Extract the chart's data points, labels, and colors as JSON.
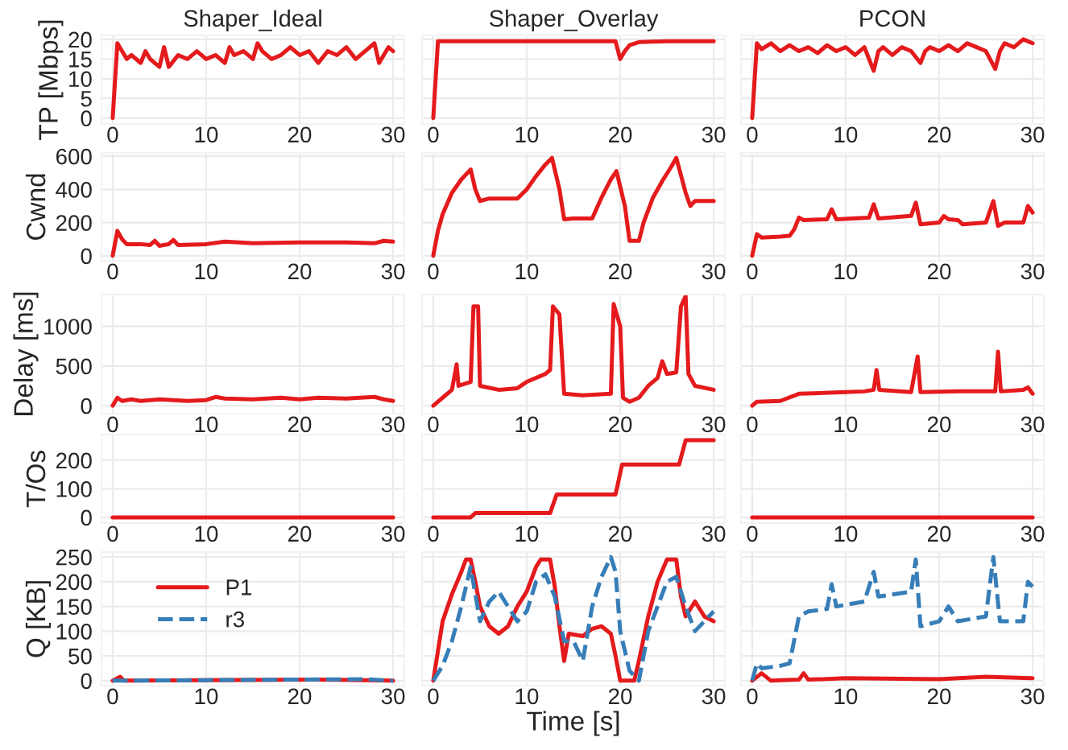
{
  "chart_data": [
    {
      "type": "line",
      "title": "Shaper_Ideal",
      "ylabel": "TP [Mbps]",
      "xlim": [
        -1.2,
        31.2
      ],
      "xticks": [
        0,
        10,
        20,
        30
      ],
      "ylim": [
        -1.5,
        21
      ],
      "yticks": [
        0,
        5,
        10,
        15,
        20
      ],
      "grid": true,
      "series": [
        {
          "color": "#e41a1c",
          "x": [
            0,
            0.5,
            1,
            1.5,
            2,
            3,
            3.5,
            4,
            5,
            5.5,
            6,
            7,
            8,
            9,
            10,
            11,
            12,
            12.5,
            13,
            14,
            15,
            15.5,
            16,
            17,
            18,
            19,
            20,
            21,
            22,
            23,
            24,
            25,
            26,
            27,
            28,
            28.5,
            29,
            29.5,
            30
          ],
          "values": [
            0,
            19,
            17,
            15,
            16,
            14,
            17,
            15,
            13,
            18,
            13,
            16,
            15,
            17,
            15,
            16,
            14,
            18,
            16,
            17,
            15,
            19,
            17,
            15,
            16,
            18,
            16,
            17,
            14,
            17,
            16,
            18,
            15,
            17,
            19,
            14,
            16,
            18,
            17
          ]
        }
      ]
    },
    {
      "type": "line",
      "title": "Shaper_Overlay",
      "xlim": [
        -1.2,
        31.2
      ],
      "xticks": [
        0,
        10,
        20,
        30
      ],
      "ylim": [
        -1.5,
        21
      ],
      "yticks": [
        0,
        5,
        10,
        15,
        20
      ],
      "grid": true,
      "tick_labels": "x",
      "series": [
        {
          "color": "#e41a1c",
          "x": [
            0,
            0.5,
            5,
            10,
            15,
            19.5,
            20,
            20.5,
            21,
            22,
            25,
            30
          ],
          "values": [
            0,
            19.5,
            19.5,
            19.5,
            19.5,
            19.5,
            15,
            17,
            18.5,
            19.3,
            19.5,
            19.5
          ]
        }
      ]
    },
    {
      "type": "line",
      "title": "PCON",
      "xlim": [
        -1.2,
        31.2
      ],
      "xticks": [
        0,
        10,
        20,
        30
      ],
      "ylim": [
        -1.5,
        21
      ],
      "yticks": [
        0,
        5,
        10,
        15,
        20
      ],
      "grid": true,
      "tick_labels": "x",
      "series": [
        {
          "color": "#e41a1c",
          "x": [
            0,
            0.5,
            1,
            2,
            3,
            4,
            5,
            6,
            7,
            8,
            9,
            10,
            11,
            12,
            13,
            13.5,
            14,
            15,
            16,
            17,
            18,
            18.5,
            19,
            20,
            21,
            22,
            23,
            24,
            25,
            26,
            26.5,
            27,
            28,
            29,
            30
          ],
          "values": [
            0,
            19,
            17.5,
            19,
            17,
            18.5,
            17,
            18,
            16.5,
            18.5,
            17,
            18,
            16,
            18,
            12,
            17,
            18,
            16,
            18,
            17,
            14,
            17,
            18,
            17,
            18.5,
            17,
            19,
            18,
            17,
            12.5,
            17,
            19,
            18,
            20,
            19
          ]
        }
      ]
    },
    {
      "type": "line",
      "ylabel": "Cwnd",
      "xlim": [
        -1.2,
        31.2
      ],
      "xticks": [
        0,
        10,
        20,
        30
      ],
      "ylim": [
        -30,
        620
      ],
      "yticks": [
        0,
        200,
        400,
        600
      ],
      "grid": true,
      "series": [
        {
          "color": "#e41a1c",
          "x": [
            0,
            0.5,
            1,
            1.5,
            3,
            4,
            4.5,
            5,
            6,
            6.5,
            7,
            10,
            12,
            15,
            20,
            25,
            28,
            29,
            30
          ],
          "values": [
            0,
            150,
            100,
            70,
            70,
            65,
            90,
            60,
            70,
            95,
            65,
            70,
            85,
            75,
            80,
            80,
            75,
            90,
            85
          ]
        }
      ]
    },
    {
      "type": "line",
      "xlim": [
        -1.2,
        31.2
      ],
      "xticks": [
        0,
        10,
        20,
        30
      ],
      "ylim": [
        -30,
        620
      ],
      "yticks": [
        0,
        200,
        400,
        600
      ],
      "grid": true,
      "tick_labels": "x",
      "series": [
        {
          "color": "#e41a1c",
          "x": [
            0,
            0.5,
            1,
            2,
            3,
            4,
            4.5,
            5,
            6,
            9,
            10,
            11,
            12,
            12.7,
            13.5,
            14,
            15,
            17,
            18,
            19,
            19.6,
            20.5,
            21,
            22,
            22.5,
            23.5,
            24.5,
            25.5,
            26,
            27,
            27.5,
            28,
            30
          ],
          "values": [
            0,
            150,
            250,
            380,
            460,
            520,
            400,
            330,
            345,
            345,
            400,
            480,
            550,
            590,
            400,
            220,
            225,
            225,
            350,
            460,
            510,
            300,
            90,
            90,
            200,
            350,
            450,
            540,
            590,
            380,
            300,
            330,
            330
          ]
        }
      ]
    },
    {
      "type": "line",
      "xlim": [
        -1.2,
        31.2
      ],
      "xticks": [
        0,
        10,
        20,
        30
      ],
      "ylim": [
        -30,
        620
      ],
      "yticks": [
        0,
        200,
        400,
        600
      ],
      "grid": true,
      "tick_labels": "x",
      "series": [
        {
          "color": "#e41a1c",
          "x": [
            0,
            0.5,
            1,
            3,
            4,
            4.5,
            5,
            5.5,
            8,
            8.5,
            9,
            12.5,
            13,
            13.5,
            17,
            17.5,
            18,
            20,
            20.5,
            21,
            22,
            22.5,
            25,
            25.8,
            26.3,
            27,
            29,
            29.5,
            30
          ],
          "values": [
            0,
            130,
            110,
            115,
            120,
            160,
            230,
            215,
            220,
            280,
            220,
            230,
            310,
            225,
            240,
            320,
            190,
            200,
            240,
            220,
            215,
            190,
            200,
            330,
            180,
            200,
            200,
            300,
            260
          ]
        }
      ]
    },
    {
      "type": "line",
      "ylabel": "Delay [ms]",
      "xlim": [
        -1.2,
        31.2
      ],
      "xticks": [
        0,
        10,
        20,
        30
      ],
      "ylim": [
        -100,
        1400
      ],
      "yticks": [
        0,
        500,
        1000
      ],
      "grid": true,
      "series": [
        {
          "color": "#e41a1c",
          "x": [
            0,
            0.5,
            1,
            2,
            3,
            5,
            8,
            10,
            11,
            12,
            15,
            18,
            20,
            22,
            25,
            28,
            29,
            30
          ],
          "values": [
            0,
            100,
            60,
            80,
            60,
            80,
            60,
            70,
            110,
            90,
            80,
            100,
            80,
            100,
            90,
            110,
            80,
            60
          ]
        }
      ]
    },
    {
      "type": "line",
      "xlim": [
        -1.2,
        31.2
      ],
      "xticks": [
        0,
        10,
        20,
        30
      ],
      "ylim": [
        -100,
        1400
      ],
      "yticks": [
        0,
        500,
        1000
      ],
      "grid": true,
      "tick_labels": "x",
      "series": [
        {
          "color": "#e41a1c",
          "x": [
            0,
            1,
            2,
            2.5,
            2.7,
            4,
            4.3,
            4.8,
            5,
            7,
            9,
            10,
            12,
            12.5,
            12.8,
            13.5,
            14,
            16,
            19,
            19.3,
            20,
            20.3,
            21,
            22,
            23,
            24,
            24.5,
            25,
            26,
            26.5,
            27,
            27.3,
            28,
            30
          ],
          "values": [
            0,
            100,
            200,
            520,
            250,
            300,
            1250,
            1250,
            250,
            200,
            220,
            300,
            400,
            450,
            1250,
            1150,
            150,
            130,
            150,
            1280,
            1000,
            100,
            50,
            100,
            250,
            350,
            560,
            400,
            420,
            1250,
            1380,
            400,
            250,
            200
          ]
        }
      ]
    },
    {
      "type": "line",
      "xlim": [
        -1.2,
        31.2
      ],
      "xticks": [
        0,
        10,
        20,
        30
      ],
      "ylim": [
        -100,
        1400
      ],
      "yticks": [
        0,
        500,
        1000
      ],
      "grid": true,
      "tick_labels": "x",
      "series": [
        {
          "color": "#e41a1c",
          "x": [
            0,
            0.5,
            3,
            5,
            10,
            12,
            13,
            13.3,
            13.6,
            17,
            17.7,
            18,
            22,
            26,
            26.3,
            26.6,
            29,
            29.5,
            30
          ],
          "values": [
            0,
            50,
            60,
            150,
            170,
            180,
            200,
            450,
            200,
            170,
            620,
            170,
            180,
            180,
            680,
            180,
            200,
            230,
            150
          ]
        }
      ]
    },
    {
      "type": "line",
      "ylabel": "T/Os",
      "xlim": [
        -1.2,
        31.2
      ],
      "xticks": [
        0,
        10,
        20,
        30
      ],
      "ylim": [
        -20,
        290
      ],
      "yticks": [
        0,
        100,
        200
      ],
      "grid": true,
      "series": [
        {
          "color": "#e41a1c",
          "x": [
            0,
            30
          ],
          "values": [
            0,
            0
          ]
        }
      ]
    },
    {
      "type": "line",
      "xlim": [
        -1.2,
        31.2
      ],
      "xticks": [
        0,
        10,
        20,
        30
      ],
      "ylim": [
        -20,
        290
      ],
      "yticks": [
        0,
        100,
        200
      ],
      "grid": true,
      "tick_labels": "x",
      "series": [
        {
          "color": "#e41a1c",
          "x": [
            0,
            4,
            4.5,
            12.5,
            13.2,
            19.5,
            20.2,
            26.3,
            27,
            30
          ],
          "values": [
            0,
            0,
            15,
            15,
            80,
            80,
            185,
            185,
            270,
            270
          ]
        }
      ]
    },
    {
      "type": "line",
      "xlim": [
        -1.2,
        31.2
      ],
      "xticks": [
        0,
        10,
        20,
        30
      ],
      "ylim": [
        -20,
        290
      ],
      "yticks": [
        0,
        100,
        200
      ],
      "grid": true,
      "tick_labels": "x",
      "series": [
        {
          "color": "#e41a1c",
          "x": [
            0,
            30
          ],
          "values": [
            0,
            0
          ]
        }
      ]
    },
    {
      "type": "line",
      "ylabel": "Q [KB]",
      "xlim": [
        -1.2,
        31.2
      ],
      "xticks": [
        0,
        10,
        20,
        30
      ],
      "ylim": [
        -10,
        260
      ],
      "yticks": [
        0,
        50,
        100,
        150,
        200,
        250
      ],
      "grid": true,
      "legend": "top left",
      "series": [
        {
          "name": "P1",
          "color": "#e41a1c",
          "line_style": "solid",
          "x": [
            0,
            0.8,
            1.2,
            22,
            30
          ],
          "values": [
            0,
            8,
            0,
            2,
            0
          ]
        },
        {
          "name": "r3",
          "color": "#377eb8",
          "line_style": "dashed",
          "x": [
            0,
            27,
            30
          ],
          "values": [
            0,
            3,
            0
          ]
        }
      ]
    },
    {
      "type": "line",
      "xlabel": "Time [s]",
      "xlim": [
        -1.2,
        31.2
      ],
      "xticks": [
        0,
        10,
        20,
        30
      ],
      "ylim": [
        -10,
        260
      ],
      "yticks": [
        0,
        50,
        100,
        150,
        200,
        250
      ],
      "grid": true,
      "tick_labels": "x",
      "series": [
        {
          "color": "#e41a1c",
          "line_style": "solid",
          "x": [
            0,
            1,
            2,
            3,
            3.5,
            4,
            4.5,
            5,
            6,
            7,
            8,
            9,
            10,
            11,
            11.5,
            12.5,
            13,
            13.5,
            14,
            14.5,
            16,
            17,
            18,
            19,
            19.5,
            20,
            21.5,
            22,
            23,
            24,
            25,
            26,
            26.5,
            27,
            28,
            29,
            30
          ],
          "values": [
            0,
            120,
            175,
            220,
            245,
            245,
            200,
            150,
            110,
            95,
            110,
            150,
            180,
            230,
            245,
            245,
            190,
            110,
            40,
            95,
            90,
            105,
            110,
            95,
            50,
            0,
            0,
            40,
            130,
            200,
            245,
            245,
            170,
            130,
            160,
            130,
            120
          ]
        },
        {
          "color": "#377eb8",
          "line_style": "dashed",
          "x": [
            0,
            1,
            2,
            3,
            4,
            5,
            6,
            7,
            8,
            9,
            10,
            11,
            12,
            13,
            14,
            15,
            16,
            17,
            18,
            19,
            19.5,
            20,
            21,
            22,
            23,
            24,
            25,
            26,
            27,
            28,
            29,
            30
          ],
          "values": [
            0,
            30,
            80,
            150,
            230,
            120,
            160,
            180,
            150,
            120,
            140,
            200,
            215,
            170,
            80,
            80,
            40,
            150,
            210,
            250,
            220,
            100,
            20,
            0,
            100,
            150,
            200,
            210,
            150,
            100,
            120,
            140
          ]
        }
      ]
    },
    {
      "type": "line",
      "xlim": [
        -1.2,
        31.2
      ],
      "xticks": [
        0,
        10,
        20,
        30
      ],
      "ylim": [
        -10,
        260
      ],
      "yticks": [
        0,
        50,
        100,
        150,
        200,
        250
      ],
      "grid": true,
      "tick_labels": "x",
      "series": [
        {
          "color": "#e41a1c",
          "line_style": "solid",
          "x": [
            0,
            1,
            2,
            5,
            5.5,
            6,
            10,
            20,
            25,
            30
          ],
          "values": [
            0,
            15,
            0,
            2,
            15,
            2,
            5,
            3,
            8,
            5
          ]
        },
        {
          "color": "#377eb8",
          "line_style": "dashed",
          "x": [
            0,
            0.5,
            1,
            3,
            4,
            5,
            6,
            8,
            8.5,
            9,
            12,
            13,
            13.5,
            17,
            17.5,
            18,
            20,
            21,
            22,
            25,
            25.8,
            26.5,
            29,
            29.5,
            30
          ],
          "values": [
            0,
            35,
            25,
            30,
            35,
            130,
            140,
            145,
            195,
            150,
            160,
            220,
            170,
            180,
            245,
            110,
            120,
            150,
            120,
            130,
            250,
            120,
            120,
            200,
            190
          ]
        }
      ]
    }
  ]
}
